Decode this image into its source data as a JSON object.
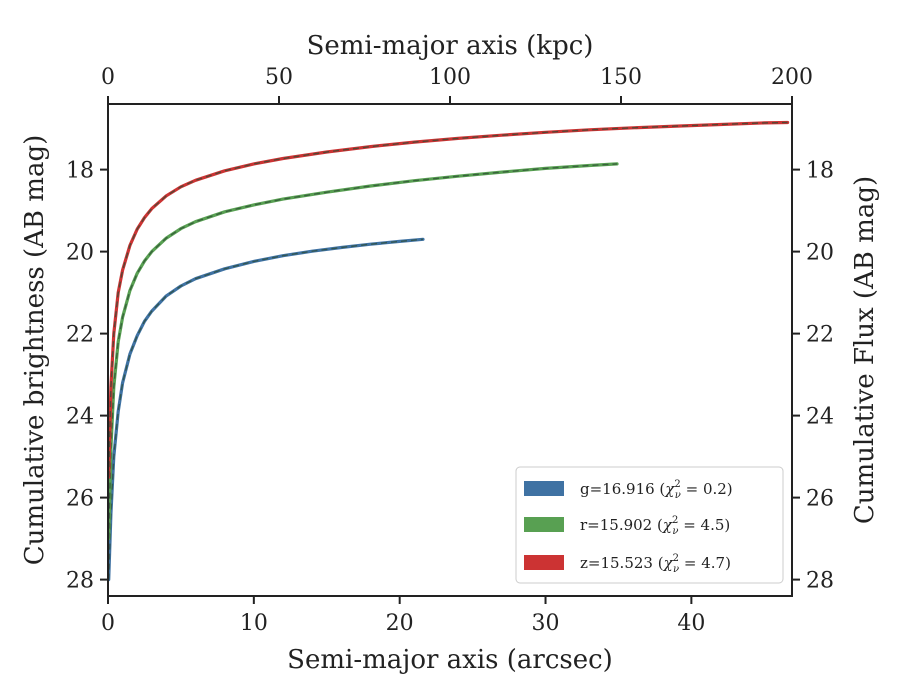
{
  "chart_data": {
    "type": "line",
    "xlabel": "Semi-major axis (arcsec)",
    "ylabel": "Cumulative brightness (AB mag)",
    "x2label": "Semi-major axis (kpc)",
    "y2label": "Cumulative Flux (AB mag)",
    "xlim": [
      0,
      46.9
    ],
    "ylim": [
      28.4,
      16.4
    ],
    "x2lim": [
      0,
      200
    ],
    "y_inverted": true,
    "xticks": [
      0,
      10,
      20,
      30,
      40
    ],
    "xtick_labels": [
      "0",
      "10",
      "20",
      "30",
      "40"
    ],
    "x2ticks": [
      0,
      50,
      100,
      150,
      200
    ],
    "x2tick_labels": [
      "0",
      "50",
      "100",
      "150",
      "200"
    ],
    "yticks": [
      18,
      20,
      22,
      24,
      26,
      28
    ],
    "ytick_labels": [
      "18",
      "20",
      "22",
      "24",
      "26",
      "28"
    ],
    "grid": false,
    "legend_position": "lower-right",
    "series": [
      {
        "name": "g=16.916 (χ²ᵥ = 0.2)",
        "label_main": "g=16.916 (",
        "label_chi": "χ",
        "label_sup": "2",
        "label_sub": "ν",
        "label_value": " = 0.2)",
        "color": "#3f72a3",
        "x": [
          0.05,
          0.2,
          0.4,
          0.7,
          1.0,
          1.5,
          2.0,
          2.5,
          3.0,
          4.0,
          5.0,
          6.0,
          8.0,
          10.0,
          12.0,
          14.0,
          16.0,
          18.0,
          20.0,
          21.6
        ],
        "y": [
          28.0,
          26.4,
          25.0,
          23.9,
          23.2,
          22.5,
          22.05,
          21.7,
          21.45,
          21.08,
          20.84,
          20.66,
          20.42,
          20.24,
          20.1,
          19.99,
          19.9,
          19.82,
          19.75,
          19.7
        ]
      },
      {
        "name": "r=15.902 (χ²ᵥ = 4.5)",
        "label_main": "r=15.902 (",
        "label_chi": "χ",
        "label_sup": "2",
        "label_sub": "ν",
        "label_value": " = 4.5)",
        "color": "#58a052",
        "x": [
          0.05,
          0.2,
          0.4,
          0.7,
          1.0,
          1.5,
          2.0,
          2.5,
          3.0,
          4.0,
          5.0,
          6.0,
          8.0,
          10.0,
          12.0,
          15.0,
          18.0,
          21.0,
          24.0,
          27.0,
          30.0,
          33.0,
          34.9
        ],
        "y": [
          27.0,
          24.8,
          23.3,
          22.2,
          21.6,
          20.95,
          20.53,
          20.23,
          20.0,
          19.67,
          19.44,
          19.27,
          19.03,
          18.86,
          18.72,
          18.55,
          18.4,
          18.27,
          18.16,
          18.06,
          17.97,
          17.9,
          17.86
        ]
      },
      {
        "name": "z=15.523 (χ²ᵥ = 4.7)",
        "label_main": "z=15.523 (",
        "label_chi": "χ",
        "label_sup": "2",
        "label_sub": "ν",
        "label_value": " = 4.7)",
        "color": "#cc3333",
        "x": [
          0.05,
          0.2,
          0.4,
          0.7,
          1.0,
          1.5,
          2.0,
          2.5,
          3.0,
          4.0,
          5.0,
          6.0,
          8.0,
          10.0,
          12.0,
          15.0,
          18.0,
          21.0,
          24.0,
          27.0,
          30.0,
          33.0,
          36.0,
          39.0,
          42.0,
          45.0,
          46.6
        ],
        "y": [
          25.5,
          23.3,
          22.0,
          21.0,
          20.45,
          19.85,
          19.45,
          19.17,
          18.95,
          18.64,
          18.42,
          18.26,
          18.03,
          17.86,
          17.73,
          17.57,
          17.44,
          17.33,
          17.24,
          17.16,
          17.09,
          17.03,
          16.98,
          16.94,
          16.9,
          16.86,
          16.85
        ]
      }
    ]
  }
}
